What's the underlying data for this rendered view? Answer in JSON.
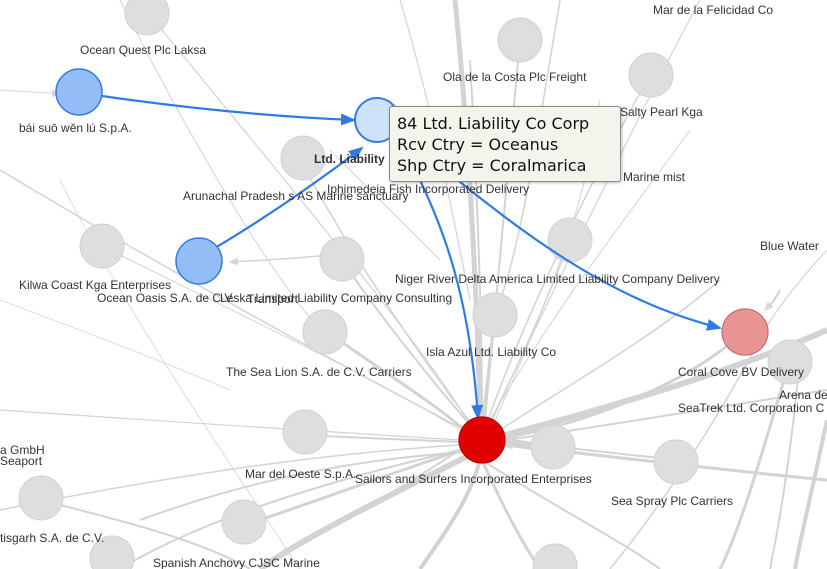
{
  "colors": {
    "edge_gray": "#c9c9c9",
    "node_gray": "#e0e0e0",
    "highlight_edge": "#2f7be3",
    "node_blue": "#93bdf7",
    "node_blue_stroke": "#3a7bdc",
    "node_light_blue": "#cfe2fb",
    "node_red": "#e00000",
    "node_pink": "#e99595"
  },
  "tooltip": {
    "name": "84 Ltd. Liability Co Corp",
    "rcv": "Rcv Ctry = Oceanus",
    "shp": "Shp Ctry = Coralmarica"
  },
  "labels": [
    "Mar de la Felicidad Co",
    "Ocean Quest Plc Laksa",
    "Ola de la Costa Plc Freight",
    "Salty Pearl Kga",
    "bái suō wěn lú S.p.A.",
    "Ltd. Liability",
    "Marine mist",
    "Arunachal Pradesh s AS Marine sanctuary",
    "Iphimedeia Fish Incorporated Delivery",
    "Blue Water",
    "Kilwa Coast  Kga Enterprises",
    "Ocean Oasis S.A. de C.V.",
    "Leska Limited Liability Company Consulting",
    "Transport",
    "Niger River Delta  America Limited Liability Company Delivery",
    "Isla Azul Ltd. Liability Co",
    "Coral Cove BV Delivery",
    "Arena de",
    "The Sea Lion S.A. de C.V. Carriers",
    "SeaTrek Ltd. Corporation C",
    "a  GmbH",
    "Seaport",
    "Mar del Oeste S.p.A.",
    "Sailors and Surfers Incorporated Enterprises",
    "Sea Spray Plc Carriers",
    "tisgarh   S.A. de C.V.",
    "Spanish Anchovy CJSC Marine"
  ]
}
